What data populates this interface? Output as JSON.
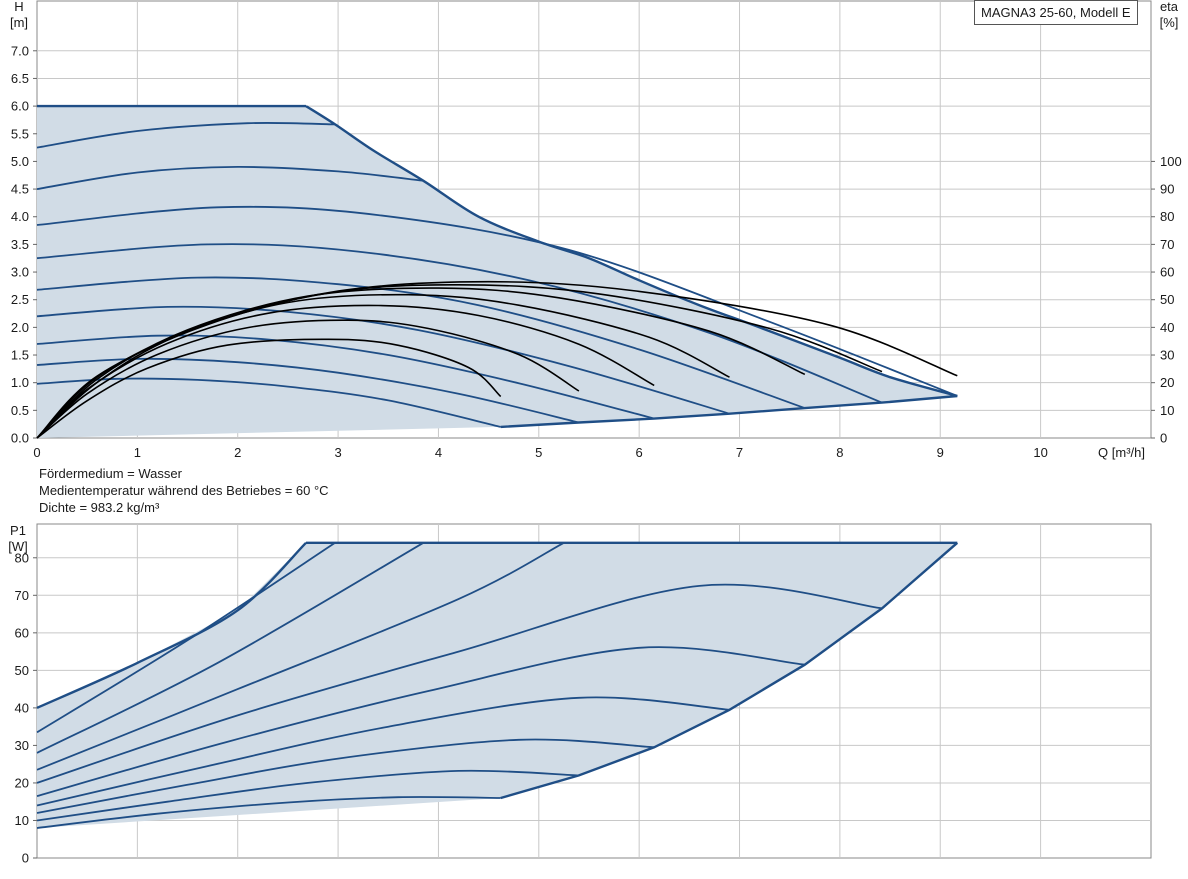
{
  "model_label": "MAGNA3 25-60, Modell E",
  "notes": [
    "Fördermedium = Wasser",
    "Medientemperatur während des Betriebes = 60 °C",
    "Dichte = 983.2 kg/m³"
  ],
  "colors": {
    "curve": "#1f4e86",
    "fill": "#d1dce6",
    "efficiency": "#000000",
    "grid": "#c8c8c8"
  },
  "chart_data": [
    {
      "type": "line",
      "ylabel_top": "H",
      "ylabel_unit": "[m]",
      "y2label_top": "eta",
      "y2label_unit": "[%]",
      "xlabel": "Q [m³/h]",
      "xlim": [
        0,
        11.1
      ],
      "ylim": [
        0,
        7.9
      ],
      "x_ticks": [
        "0",
        "1",
        "2",
        "3",
        "4",
        "5",
        "6",
        "7",
        "8",
        "9",
        "10"
      ],
      "y_ticks": [
        "0.0",
        "0.5",
        "1.0",
        "1.5",
        "2.0",
        "2.5",
        "3.0",
        "3.5",
        "4.0",
        "4.5",
        "5.0",
        "5.5",
        "6.0",
        "6.5",
        "7.0"
      ],
      "y2_ticks": [
        "0",
        "10",
        "20",
        "30",
        "40",
        "50",
        "60",
        "70",
        "80",
        "90",
        "100"
      ],
      "y2_range_per_ylim": [
        0,
        100,
        0,
        5.0
      ],
      "envelope": {
        "max_head_line": [
          [
            0,
            6.0
          ],
          [
            2.68,
            6.0
          ]
        ],
        "max_curve": [
          [
            2.68,
            6.0
          ],
          [
            2.97,
            5.67
          ],
          [
            3.35,
            5.2
          ],
          [
            3.85,
            4.65
          ],
          [
            4.4,
            4.0
          ],
          [
            5.0,
            3.55
          ],
          [
            5.5,
            3.25
          ],
          [
            6.0,
            2.85
          ],
          [
            6.6,
            2.4
          ],
          [
            7.2,
            2.0
          ],
          [
            8.0,
            1.45
          ],
          [
            8.5,
            1.1
          ],
          [
            9.17,
            0.76
          ]
        ],
        "min_curve": [
          [
            4.62,
            0.2
          ],
          [
            5.4,
            0.28
          ],
          [
            6.15,
            0.35
          ],
          [
            6.9,
            0.44
          ],
          [
            7.65,
            0.54
          ],
          [
            8.42,
            0.64
          ],
          [
            9.17,
            0.76
          ]
        ]
      },
      "series": [
        {
          "values": [
            [
              0,
              0.98
            ],
            [
              0.8,
              1.07
            ],
            [
              1.6,
              1.05
            ],
            [
              2.5,
              0.93
            ],
            [
              3.5,
              0.68
            ],
            [
              4.62,
              0.2
            ]
          ]
        },
        {
          "values": [
            [
              0,
              1.32
            ],
            [
              1.0,
              1.43
            ],
            [
              2.0,
              1.37
            ],
            [
              3.0,
              1.18
            ],
            [
              4.2,
              0.8
            ],
            [
              5.4,
              0.28
            ]
          ]
        },
        {
          "values": [
            [
              0,
              1.7
            ],
            [
              1.2,
              1.85
            ],
            [
              2.3,
              1.78
            ],
            [
              3.5,
              1.5
            ],
            [
              4.8,
              0.99
            ],
            [
              6.15,
              0.35
            ]
          ]
        },
        {
          "values": [
            [
              0,
              2.2
            ],
            [
              1.3,
              2.37
            ],
            [
              2.5,
              2.28
            ],
            [
              3.8,
              1.95
            ],
            [
              5.3,
              1.3
            ],
            [
              6.9,
              0.44
            ]
          ]
        },
        {
          "values": [
            [
              0,
              2.68
            ],
            [
              1.6,
              2.9
            ],
            [
              3.0,
              2.78
            ],
            [
              4.4,
              2.4
            ],
            [
              6.0,
              1.6
            ],
            [
              7.65,
              0.54
            ]
          ]
        },
        {
          "values": [
            [
              0,
              3.25
            ],
            [
              1.7,
              3.5
            ],
            [
              3.2,
              3.37
            ],
            [
              4.9,
              2.85
            ],
            [
              6.7,
              1.9
            ],
            [
              8.42,
              0.64
            ]
          ]
        },
        {
          "values": [
            [
              0,
              3.85
            ],
            [
              1.8,
              4.17
            ],
            [
              3.4,
              4.03
            ],
            [
              5.3,
              3.4
            ],
            [
              7.3,
              2.1
            ],
            [
              9.17,
              0.76
            ]
          ]
        },
        {
          "values": [
            [
              0,
              4.5
            ],
            [
              1.0,
              4.8
            ],
            [
              2.0,
              4.9
            ],
            [
              3.0,
              4.82
            ],
            [
              3.85,
              4.65
            ]
          ]
        },
        {
          "values": [
            [
              0,
              5.25
            ],
            [
              1.0,
              5.55
            ],
            [
              2.1,
              5.69
            ],
            [
              2.97,
              5.67
            ]
          ]
        }
      ],
      "efficiency_series": [
        {
          "values": [
            [
              0,
              0
            ],
            [
              0.5,
              13.5
            ],
            [
              1.1,
              25.2
            ],
            [
              1.9,
              33.6
            ],
            [
              2.9,
              35.7
            ],
            [
              3.6,
              33.5
            ],
            [
              4.3,
              25.5
            ],
            [
              4.62,
              15
            ]
          ]
        },
        {
          "values": [
            [
              0,
              0
            ],
            [
              0.5,
              16.0
            ],
            [
              1.2,
              30.2
            ],
            [
              2.1,
              39.9
            ],
            [
              3.1,
              42.6
            ],
            [
              3.9,
              39.6
            ],
            [
              4.8,
              30.2
            ],
            [
              5.4,
              17
            ]
          ]
        },
        {
          "values": [
            [
              0,
              0
            ],
            [
              0.5,
              17.6
            ],
            [
              1.3,
              34.2
            ],
            [
              2.3,
              45.1
            ],
            [
              3.4,
              47.9
            ],
            [
              4.4,
              44.3
            ],
            [
              5.4,
              33.9
            ],
            [
              6.15,
              19
            ]
          ]
        },
        {
          "values": [
            [
              0,
              0
            ],
            [
              0.6,
              20.1
            ],
            [
              1.4,
              37.0
            ],
            [
              2.5,
              49.0
            ],
            [
              3.7,
              51.8
            ],
            [
              4.8,
              48.0
            ],
            [
              6.1,
              36.4
            ],
            [
              6.9,
              22
            ]
          ]
        },
        {
          "values": [
            [
              0,
              0
            ],
            [
              0.6,
              21.3
            ],
            [
              1.5,
              39.1
            ],
            [
              2.7,
              51.3
            ],
            [
              4.0,
              54.2
            ],
            [
              5.2,
              50.7
            ],
            [
              6.7,
              38.6
            ],
            [
              7.65,
              23
            ]
          ]
        },
        {
          "values": [
            [
              0,
              0
            ],
            [
              0.6,
              22.0
            ],
            [
              1.6,
              40.1
            ],
            [
              2.9,
              52.4
            ],
            [
              4.2,
              55.4
            ],
            [
              5.6,
              52.1
            ],
            [
              7.3,
              39.6
            ],
            [
              8.42,
              24
            ]
          ]
        },
        {
          "values": [
            [
              0,
              0
            ],
            [
              0.6,
              22.4
            ],
            [
              1.7,
              41.0
            ],
            [
              3.0,
              53.1
            ],
            [
              4.5,
              56.5
            ],
            [
              6.0,
              53.0
            ],
            [
              7.9,
              40.8
            ],
            [
              9.17,
              22.5
            ]
          ]
        }
      ]
    },
    {
      "type": "line",
      "ylabel_top": "P1",
      "ylabel_unit": "[W]",
      "xlim": [
        0,
        11.1
      ],
      "ylim": [
        0,
        89
      ],
      "x_ticks": [
        "0",
        "1",
        "2",
        "3",
        "4",
        "5",
        "6",
        "7",
        "8",
        "9",
        "10"
      ],
      "y_ticks": [
        "0",
        "10",
        "20",
        "30",
        "40",
        "50",
        "60",
        "70",
        "80"
      ],
      "envelope": {
        "max_power_line": [
          [
            2.68,
            84
          ],
          [
            9.17,
            84
          ]
        ],
        "max_curve": [
          [
            0,
            40
          ],
          [
            1.0,
            52
          ],
          [
            2.0,
            66
          ],
          [
            2.68,
            84
          ]
        ],
        "min_curve": [
          [
            4.62,
            16
          ],
          [
            5.4,
            22
          ],
          [
            6.15,
            29.5
          ],
          [
            6.9,
            39.5
          ],
          [
            7.65,
            51.5
          ],
          [
            8.42,
            66.5
          ],
          [
            9.17,
            84
          ]
        ]
      },
      "series": [
        {
          "values": [
            [
              0,
              8
            ],
            [
              1.2,
              11.8
            ],
            [
              2.5,
              14.8
            ],
            [
              3.6,
              16.2
            ],
            [
              4.62,
              16
            ]
          ]
        },
        {
          "values": [
            [
              0,
              10
            ],
            [
              1.3,
              15
            ],
            [
              2.7,
              20
            ],
            [
              4.2,
              23.2
            ],
            [
              5.4,
              22
            ]
          ]
        },
        {
          "values": [
            [
              0,
              12
            ],
            [
              1.5,
              19.5
            ],
            [
              3.0,
              26.5
            ],
            [
              4.8,
              31.5
            ],
            [
              6.15,
              29.5
            ]
          ]
        },
        {
          "values": [
            [
              0,
              14
            ],
            [
              1.7,
              24.5
            ],
            [
              3.5,
              35
            ],
            [
              5.4,
              42.7
            ],
            [
              6.9,
              39.5
            ]
          ]
        },
        {
          "values": [
            [
              0,
              16.5
            ],
            [
              1.9,
              31
            ],
            [
              3.9,
              44.5
            ],
            [
              6.0,
              56
            ],
            [
              7.65,
              51.5
            ]
          ]
        },
        {
          "values": [
            [
              0,
              20
            ],
            [
              2.0,
              38
            ],
            [
              4.2,
              55
            ],
            [
              6.6,
              72.5
            ],
            [
              8.42,
              66.5
            ]
          ]
        },
        {
          "values": [
            [
              0,
              23.5
            ],
            [
              2.0,
              45
            ],
            [
              4.2,
              69
            ],
            [
              5.25,
              84
            ]
          ]
        },
        {
          "values": [
            [
              0,
              28
            ],
            [
              1.8,
              52
            ],
            [
              3.85,
              84
            ]
          ]
        },
        {
          "values": [
            [
              0,
              33.5
            ],
            [
              1.5,
              58
            ],
            [
              2.97,
              84
            ]
          ]
        }
      ]
    }
  ]
}
